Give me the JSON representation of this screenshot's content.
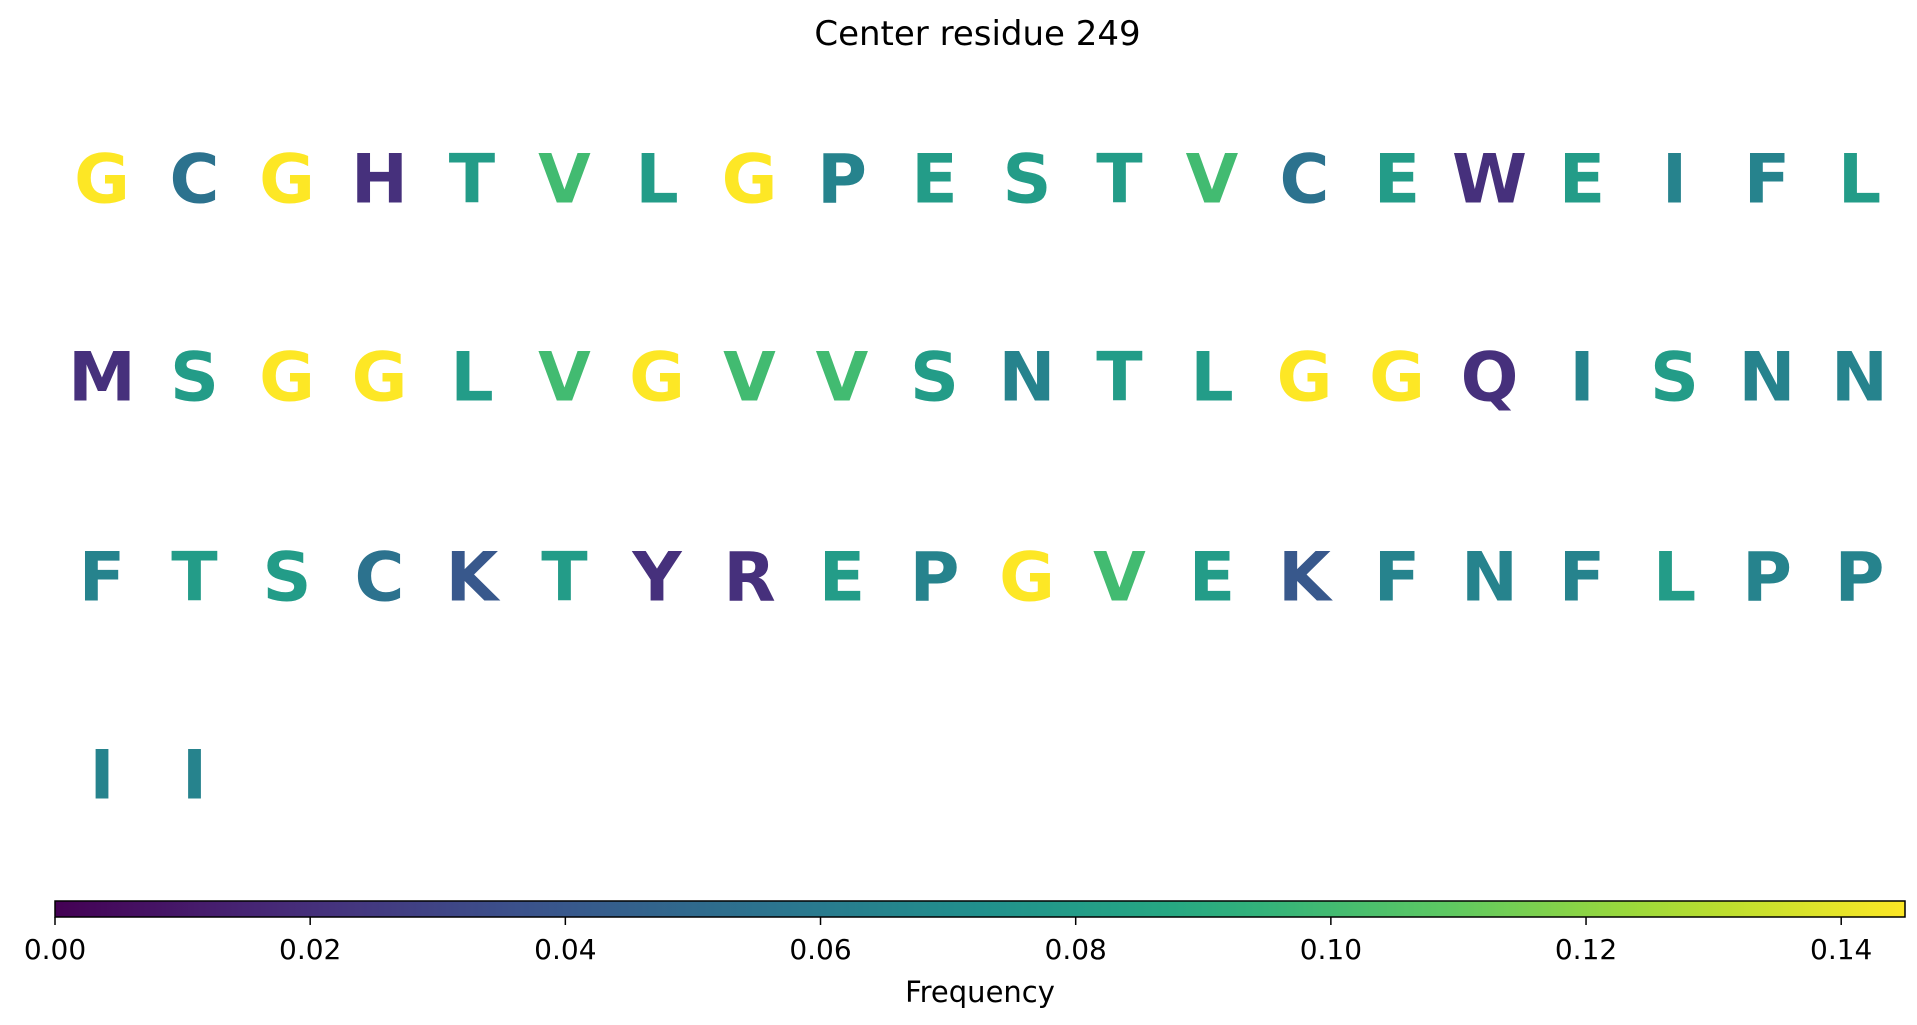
{
  "chart_data": {
    "type": "heatmap",
    "title": "Center residue 249",
    "grid": false,
    "colormap": "viridis",
    "columns_per_row": 20,
    "residues": [
      {
        "letter": "G",
        "frequency": 0.145
      },
      {
        "letter": "C",
        "frequency": 0.055
      },
      {
        "letter": "G",
        "frequency": 0.145
      },
      {
        "letter": "H",
        "frequency": 0.02
      },
      {
        "letter": "T",
        "frequency": 0.08
      },
      {
        "letter": "V",
        "frequency": 0.1
      },
      {
        "letter": "L",
        "frequency": 0.08
      },
      {
        "letter": "G",
        "frequency": 0.145
      },
      {
        "letter": "P",
        "frequency": 0.065
      },
      {
        "letter": "E",
        "frequency": 0.08
      },
      {
        "letter": "S",
        "frequency": 0.08
      },
      {
        "letter": "T",
        "frequency": 0.08
      },
      {
        "letter": "V",
        "frequency": 0.1
      },
      {
        "letter": "C",
        "frequency": 0.055
      },
      {
        "letter": "E",
        "frequency": 0.08
      },
      {
        "letter": "W",
        "frequency": 0.02
      },
      {
        "letter": "E",
        "frequency": 0.08
      },
      {
        "letter": "I",
        "frequency": 0.065
      },
      {
        "letter": "F",
        "frequency": 0.065
      },
      {
        "letter": "L",
        "frequency": 0.08
      },
      {
        "letter": "M",
        "frequency": 0.02
      },
      {
        "letter": "S",
        "frequency": 0.08
      },
      {
        "letter": "G",
        "frequency": 0.145
      },
      {
        "letter": "G",
        "frequency": 0.145
      },
      {
        "letter": "L",
        "frequency": 0.08
      },
      {
        "letter": "V",
        "frequency": 0.1
      },
      {
        "letter": "G",
        "frequency": 0.145
      },
      {
        "letter": "V",
        "frequency": 0.1
      },
      {
        "letter": "V",
        "frequency": 0.1
      },
      {
        "letter": "S",
        "frequency": 0.08
      },
      {
        "letter": "N",
        "frequency": 0.065
      },
      {
        "letter": "T",
        "frequency": 0.08
      },
      {
        "letter": "L",
        "frequency": 0.08
      },
      {
        "letter": "G",
        "frequency": 0.145
      },
      {
        "letter": "G",
        "frequency": 0.145
      },
      {
        "letter": "Q",
        "frequency": 0.02
      },
      {
        "letter": "I",
        "frequency": 0.065
      },
      {
        "letter": "S",
        "frequency": 0.08
      },
      {
        "letter": "N",
        "frequency": 0.065
      },
      {
        "letter": "N",
        "frequency": 0.065
      },
      {
        "letter": "F",
        "frequency": 0.065
      },
      {
        "letter": "T",
        "frequency": 0.08
      },
      {
        "letter": "S",
        "frequency": 0.08
      },
      {
        "letter": "C",
        "frequency": 0.055
      },
      {
        "letter": "K",
        "frequency": 0.04
      },
      {
        "letter": "T",
        "frequency": 0.08
      },
      {
        "letter": "Y",
        "frequency": 0.02
      },
      {
        "letter": "R",
        "frequency": 0.02
      },
      {
        "letter": "E",
        "frequency": 0.08
      },
      {
        "letter": "P",
        "frequency": 0.065
      },
      {
        "letter": "G",
        "frequency": 0.145
      },
      {
        "letter": "V",
        "frequency": 0.1
      },
      {
        "letter": "E",
        "frequency": 0.08
      },
      {
        "letter": "K",
        "frequency": 0.04
      },
      {
        "letter": "F",
        "frequency": 0.065
      },
      {
        "letter": "N",
        "frequency": 0.065
      },
      {
        "letter": "F",
        "frequency": 0.065
      },
      {
        "letter": "L",
        "frequency": 0.08
      },
      {
        "letter": "P",
        "frequency": 0.065
      },
      {
        "letter": "P",
        "frequency": 0.065
      },
      {
        "letter": "I",
        "frequency": 0.065
      },
      {
        "letter": "I",
        "frequency": 0.065
      }
    ],
    "colorbar": {
      "label": "Frequency",
      "range": [
        0,
        0.145
      ],
      "ticks": [
        0.0,
        0.02,
        0.04,
        0.06,
        0.08,
        0.1,
        0.12,
        0.14
      ],
      "tick_labels": [
        "0.00",
        "0.02",
        "0.04",
        "0.06",
        "0.08",
        "0.10",
        "0.12",
        "0.14"
      ],
      "orientation": "horizontal",
      "placement": "bottom"
    }
  }
}
